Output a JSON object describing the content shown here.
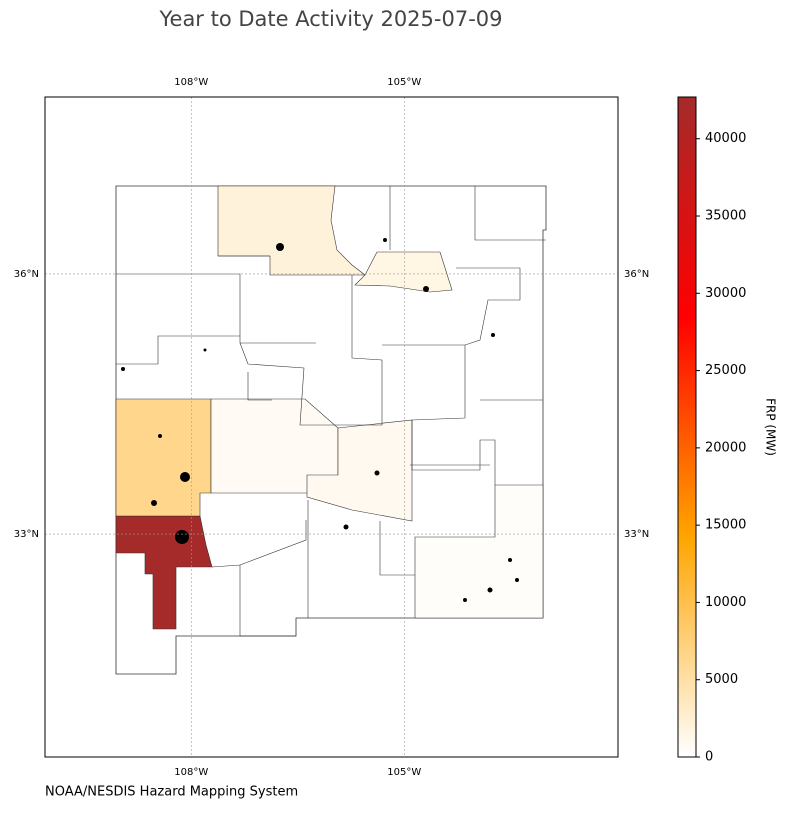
{
  "chart_data": {
    "type": "choropleth",
    "title": "Year to Date Activity 2025-07-09",
    "source": "NOAA/NESDIS Hazard Mapping System",
    "colorbar_label": "FRP (MW)",
    "xlim": [
      -110.06,
      -101.99
    ],
    "ylim": [
      30.43,
      38.04
    ],
    "xticks": [
      {
        "value": -108,
        "label": "108°W"
      },
      {
        "value": -105,
        "label": "105°W"
      }
    ],
    "yticks": [
      {
        "value": 33,
        "label": "33°N"
      },
      {
        "value": 36,
        "label": "36°N"
      }
    ],
    "grid": true,
    "region_values": [
      42700,
      6500,
      2000,
      1500,
      600,
      900,
      300
    ],
    "clim": [
      0,
      42700
    ],
    "cticks": [
      0,
      5000,
      10000,
      15000,
      20000,
      25000,
      30000,
      35000,
      40000
    ],
    "colormap": [
      "#ffffff",
      "#ffa500",
      "#ff0000",
      "#a52a2a"
    ]
  }
}
